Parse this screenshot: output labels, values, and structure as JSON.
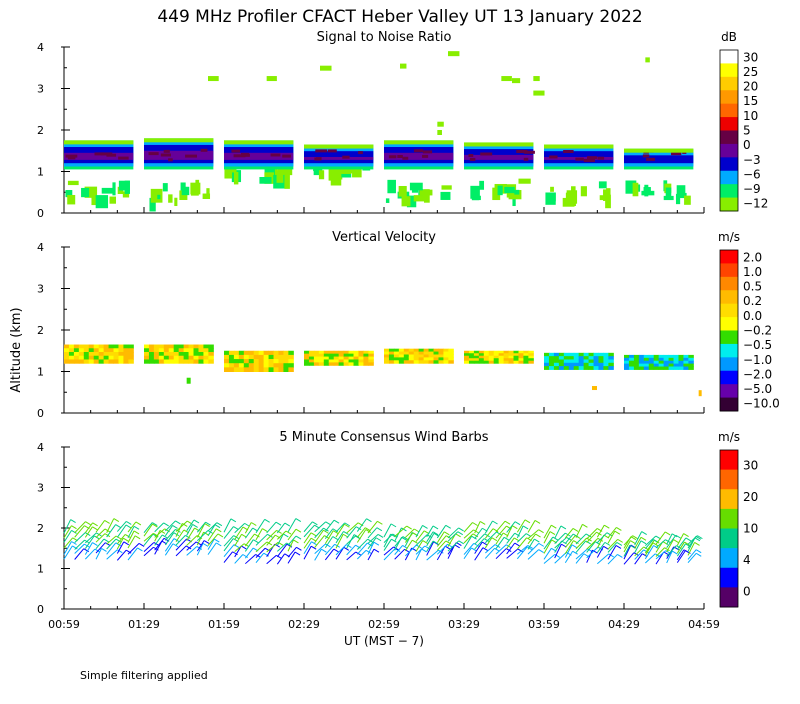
{
  "title": "449 MHz Profiler CFACT Heber Valley UT 13 January 2022",
  "footer": "Simple filtering applied",
  "y_axis_label": "Altitude (km)",
  "x_axis_label": "UT  (MST − 7)",
  "x_ticks": [
    "00:59",
    "01:29",
    "01:59",
    "02:29",
    "02:59",
    "03:29",
    "03:59",
    "04:29",
    "04:59"
  ],
  "y_ticks": [
    "0",
    "1",
    "2",
    "3",
    "4"
  ],
  "chart_data": [
    {
      "type": "heatmap",
      "title": "Signal to Noise Ratio",
      "xlabel": "UT  (MST − 7)",
      "ylabel": "Altitude (km)",
      "xlim": [
        "00:59",
        "04:59"
      ],
      "ylim": [
        0,
        4
      ],
      "colorbar": {
        "unit": "dB",
        "labels": [
          "30",
          "25",
          "20",
          "15",
          "10",
          "5",
          "0",
          "−3",
          "−6",
          "−9",
          "−12"
        ],
        "colors": [
          "#ffffff",
          "#ffff00",
          "#ffcc00",
          "#ff9900",
          "#ff6600",
          "#ee0000",
          "#660044",
          "#660099",
          "#0000cc",
          "#00aaff",
          "#00ee66",
          "#88ee00"
        ]
      },
      "segments": [
        {
          "t0": 0,
          "t1": 13,
          "bottom": 0.35,
          "top": 1.75
        },
        {
          "t0": 15,
          "t1": 28,
          "bottom": 0.35,
          "top": 1.8
        },
        {
          "t0": 30,
          "t1": 43,
          "bottom": 0.85,
          "top": 1.75
        },
        {
          "t0": 45,
          "t1": 58,
          "bottom": 0.95,
          "top": 1.65
        },
        {
          "t0": 60,
          "t1": 73,
          "bottom": 0.35,
          "top": 1.75
        },
        {
          "t0": 75,
          "t1": 88,
          "bottom": 0.4,
          "top": 1.7
        },
        {
          "t0": 90,
          "t1": 103,
          "bottom": 0.35,
          "top": 1.65
        },
        {
          "t0": 105,
          "t1": 118,
          "bottom": 0.35,
          "top": 1.55
        }
      ]
    },
    {
      "type": "heatmap",
      "title": "Vertical Velocity",
      "xlabel": "UT  (MST − 7)",
      "ylabel": "Altitude (km)",
      "xlim": [
        "00:59",
        "04:59"
      ],
      "ylim": [
        0,
        4
      ],
      "colorbar": {
        "unit": "m/s",
        "labels": [
          "2.0",
          "1.0",
          "0.5",
          "0.2",
          "0.0",
          "−0.2",
          "−0.5",
          "−1.0",
          "−2.0",
          "−5.0",
          "−10.0"
        ],
        "colors": [
          "#ff0000",
          "#ff4400",
          "#ff8800",
          "#ffbb00",
          "#ffdd00",
          "#ffff00",
          "#33dd00",
          "#00eeee",
          "#0099ff",
          "#0000ff",
          "#6600aa",
          "#330033"
        ]
      },
      "segments": [
        {
          "t0": 0,
          "t1": 13,
          "bottom": 1.2,
          "top": 1.65
        },
        {
          "t0": 15,
          "t1": 28,
          "bottom": 1.2,
          "top": 1.65
        },
        {
          "t0": 30,
          "t1": 43,
          "bottom": 1.0,
          "top": 1.5
        },
        {
          "t0": 45,
          "t1": 58,
          "bottom": 1.15,
          "top": 1.5
        },
        {
          "t0": 60,
          "t1": 73,
          "bottom": 1.2,
          "top": 1.55
        },
        {
          "t0": 75,
          "t1": 88,
          "bottom": 1.2,
          "top": 1.5
        },
        {
          "t0": 90,
          "t1": 103,
          "bottom": 1.05,
          "top": 1.45
        },
        {
          "t0": 105,
          "t1": 118,
          "bottom": 1.05,
          "top": 1.4
        }
      ]
    },
    {
      "type": "wind_barbs",
      "title": "5 Minute Consensus Wind Barbs",
      "xlabel": "UT  (MST − 7)",
      "ylabel": "Altitude (km)",
      "xlim": [
        "00:59",
        "04:59"
      ],
      "ylim": [
        0,
        4
      ],
      "colorbar": {
        "unit": "m/s",
        "labels": [
          "30",
          "20",
          "10",
          "4",
          "0"
        ],
        "colors": [
          "#ff0000",
          "#ff6600",
          "#ffbb00",
          "#66dd00",
          "#00cc88",
          "#00aaff",
          "#0000ff",
          "#550066"
        ]
      },
      "groups": [
        {
          "t0": 0,
          "t1": 13,
          "bottom": 1.2,
          "top": 2.0
        },
        {
          "t0": 15,
          "t1": 28,
          "bottom": 1.3,
          "top": 2.0
        },
        {
          "t0": 30,
          "t1": 43,
          "bottom": 1.1,
          "top": 2.0
        },
        {
          "t0": 45,
          "t1": 58,
          "bottom": 1.2,
          "top": 2.0
        },
        {
          "t0": 60,
          "t1": 73,
          "bottom": 1.2,
          "top": 1.85
        },
        {
          "t0": 75,
          "t1": 88,
          "bottom": 1.2,
          "top": 2.0
        },
        {
          "t0": 90,
          "t1": 103,
          "bottom": 1.1,
          "top": 1.85
        },
        {
          "t0": 105,
          "t1": 118,
          "bottom": 1.1,
          "top": 1.65
        }
      ]
    }
  ]
}
